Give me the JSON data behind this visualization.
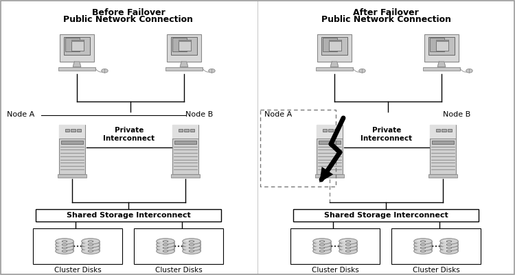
{
  "left_title1": "Before Failover",
  "left_title2": "Public Network Connection",
  "right_title1": "After Failover",
  "right_title2": "Public Network Connection",
  "left_node_a": "Node A",
  "left_node_b": "Node B",
  "right_node_a": "Node A",
  "right_node_b": "Node B",
  "private_interconnect": "Private\nInterconnect",
  "shared_storage": "Shared Storage Interconnect",
  "cluster_disks": "Cluster Disks",
  "bg_color": "#ffffff",
  "line_color": "#000000",
  "text_color": "#000000",
  "gray_light": "#e8e8e8",
  "gray_mid": "#cccccc",
  "gray_dark": "#888888",
  "gray_darker": "#555555"
}
